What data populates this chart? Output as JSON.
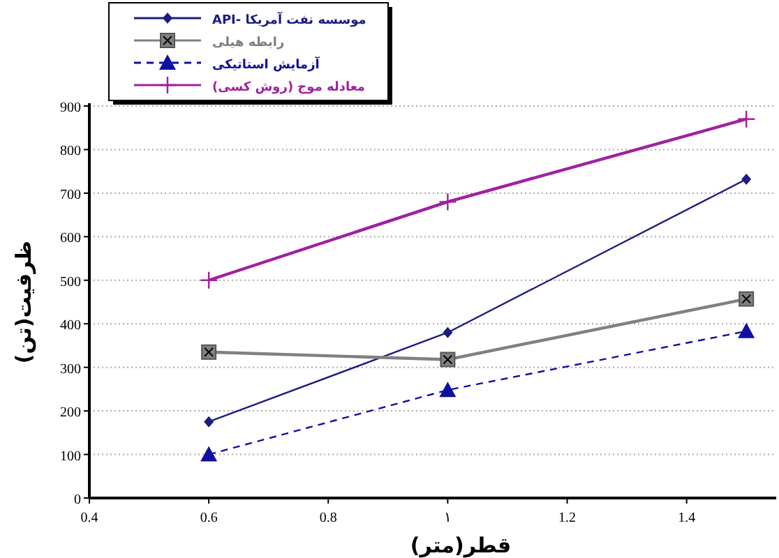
{
  "chart_data": {
    "type": "line",
    "xlabel": "قطر(متر)",
    "ylabel": "ظرفيت(تن)",
    "x": [
      0.6,
      1,
      1.5
    ],
    "series": [
      {
        "name": "موسسه نفت آمریکا -API",
        "color": "#1c1c80",
        "marker": "diamond",
        "line_style": "solid",
        "values": [
          175,
          380,
          732
        ]
      },
      {
        "name": "رابطه هيلی",
        "color": "#808080",
        "marker": "square",
        "line_style": "solid",
        "values": [
          335,
          318,
          457
        ]
      },
      {
        "name": "آزمايش استاتيكی",
        "color": "#1010a0",
        "marker": "triangle",
        "line_style": "dashed",
        "values": [
          100,
          248,
          383
        ]
      },
      {
        "name": "معادله موج (روش كسی)",
        "color": "#a020a0",
        "marker": "cross",
        "line_style": "solid",
        "values": [
          500,
          680,
          870
        ]
      }
    ],
    "xlim": [
      0.4,
      1.55
    ],
    "xticks": [
      0.4,
      0.6,
      0.8,
      {
        "value": 1,
        "label": "۱"
      },
      1.2,
      1.4
    ],
    "ylim": [
      0,
      900
    ],
    "yticks": [
      0,
      100,
      200,
      300,
      400,
      500,
      600,
      700,
      800,
      900
    ],
    "grid": "y",
    "legend": "top left"
  }
}
